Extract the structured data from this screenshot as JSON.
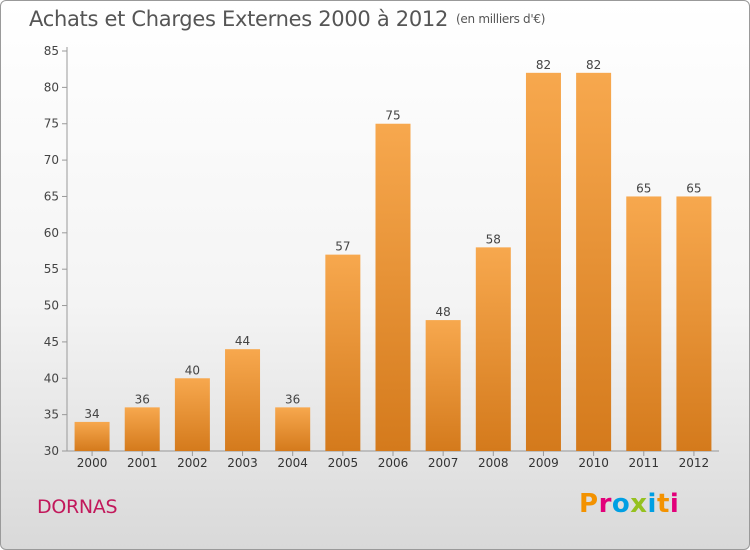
{
  "title": "Achats et Charges Externes 2000 à 2012",
  "unit_label": "(en milliers d'€)",
  "place_name": "DORNAS",
  "logo_text": "Proxiti",
  "colors": {
    "bar_light": "#f7a84e",
    "bar_dark": "#d47a1c",
    "place": "#c2185b",
    "logo": [
      "#f39200",
      "#e2007a",
      "#009fe3",
      "#95c11f",
      "#009fe3",
      "#f39200",
      "#e2007a"
    ]
  },
  "chart_data": {
    "type": "bar",
    "title": "Achats et Charges Externes 2000 à 2012",
    "categories": [
      "2000",
      "2001",
      "2002",
      "2003",
      "2004",
      "2005",
      "2006",
      "2007",
      "2008",
      "2009",
      "2010",
      "2011",
      "2012"
    ],
    "values": [
      34,
      36,
      40,
      44,
      36,
      57,
      75,
      48,
      58,
      82,
      82,
      65,
      65
    ],
    "ylim": [
      30,
      85
    ],
    "yticks": [
      30,
      35,
      40,
      45,
      50,
      55,
      60,
      65,
      70,
      75,
      80,
      85
    ],
    "grid": false,
    "data_labels": true
  }
}
